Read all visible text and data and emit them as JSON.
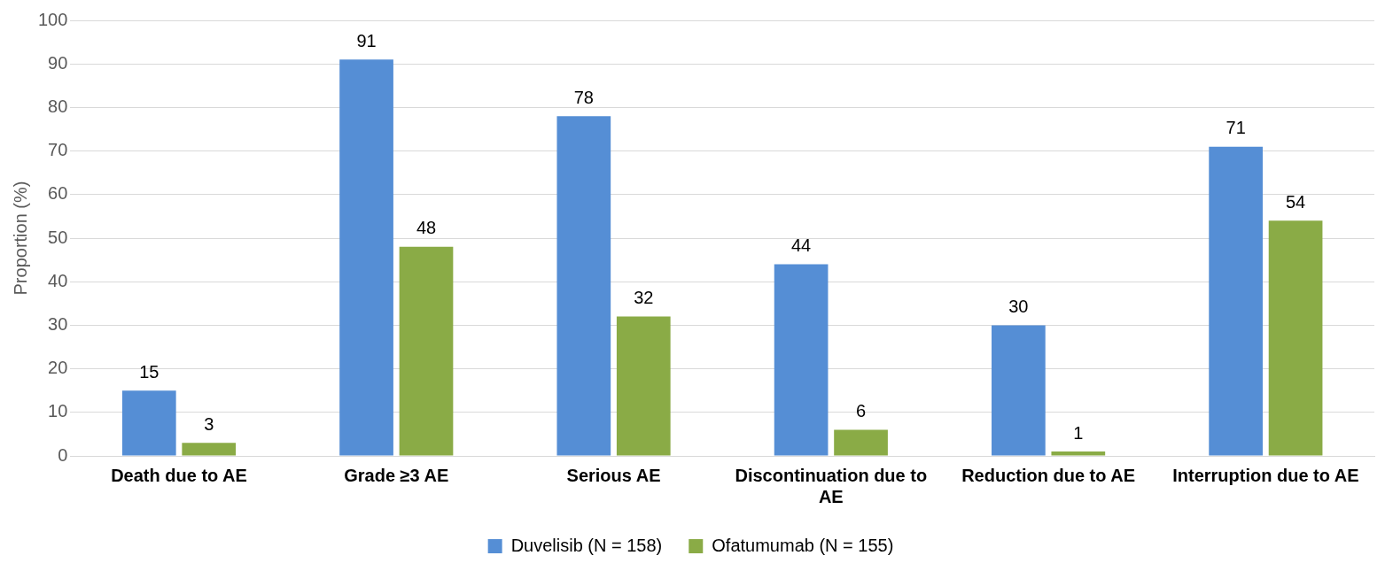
{
  "chart_data": {
    "type": "bar",
    "ylabel": "Proportion (%)",
    "categories": [
      "Death due to AE",
      "Grade ≥3 AE",
      "Serious AE",
      "Discontinuation due to AE",
      "Reduction due to AE",
      "Interruption due to AE"
    ],
    "series": [
      {
        "name": "Duvelisib (N = 158)",
        "color": "#558ed5",
        "values": [
          15,
          91,
          78,
          44,
          30,
          71
        ]
      },
      {
        "name": "Ofatumumab (N = 155)",
        "color": "#8aab46",
        "values": [
          3,
          48,
          32,
          6,
          1,
          54
        ]
      }
    ],
    "ylim": [
      0,
      100
    ],
    "yticks": [
      0,
      10,
      20,
      30,
      40,
      50,
      60,
      70,
      80,
      90,
      100
    ],
    "grid": "y",
    "legend": "bottom",
    "data_labels": true
  }
}
